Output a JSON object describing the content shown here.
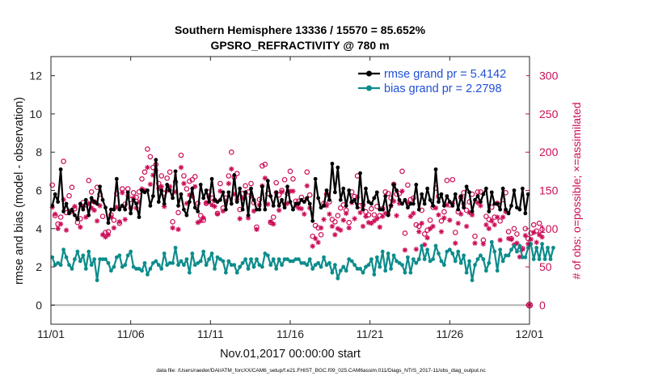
{
  "chart_data": {
    "type": "line",
    "title_line1": "Southern Hemisphere 13336 / 15570 = 85.652%",
    "title_line2": "GPSRO_REFRACTIVITY @ 780 m",
    "xlabel": "Nov.01,2017 00:00:00 start",
    "ylabel_left": "rmse and bias (model - observation)",
    "ylabel_right": "# of obs: o=possible; ×=assimilated",
    "x_tick_labels": [
      "11/01",
      "11/06",
      "11/11",
      "11/16",
      "11/21",
      "11/26",
      "12/01"
    ],
    "x_tick_days": [
      0,
      5,
      10,
      15,
      20,
      25,
      30
    ],
    "xlim_days": [
      0,
      30
    ],
    "ylim_left": [
      -1,
      13
    ],
    "yticks_left": [
      "0",
      "2",
      "4",
      "6",
      "8",
      "10",
      "12"
    ],
    "ylim_right": [
      -25,
      325
    ],
    "yticks_right": [
      "0",
      "50",
      "100",
      "150",
      "200",
      "250",
      "300"
    ],
    "legend_position": "top-right",
    "colors": {
      "rmse": "#000000",
      "bias": "#0d8c8c",
      "obs": "#cc0e58",
      "zero_line": "#b0b0b0"
    },
    "series": [
      {
        "name": "rmse grand pr = 5.4142",
        "values": [
          5.2,
          5.8,
          5.4,
          7.1,
          4.9,
          5.3,
          4.8,
          5.0,
          4.7,
          4.5,
          5.3,
          5.0,
          5.5,
          4.7,
          5.6,
          5.4,
          5.3,
          6.2,
          5.5,
          5.1,
          4.3,
          5.0,
          5.0,
          6.6,
          5.0,
          5.2,
          5.0,
          5.9,
          4.8,
          5.5,
          5.3,
          4.6,
          6.0,
          5.9,
          6.0,
          5.2,
          5.7,
          7.6,
          5.4,
          6.0,
          5.3,
          6.3,
          6.0,
          5.6,
          7.0,
          5.2,
          5.8,
          5.0,
          4.7,
          5.4,
          6.1,
          5.1,
          4.9,
          6.3,
          5.6,
          6.0,
          5.4,
          6.6,
          5.5,
          5.4,
          5.5,
          5.9,
          5.0,
          5.9,
          5.3,
          6.8,
          5.4,
          6.1,
          5.0,
          5.9,
          4.7,
          6.1,
          5.5,
          5.0,
          5.0,
          6.2,
          5.0,
          6.5,
          5.7,
          5.2,
          5.9,
          5.2,
          5.5,
          5.1,
          6.2,
          5.4,
          5.0,
          5.3,
          5.3,
          5.5,
          5.4,
          5.6,
          5.3,
          4.4,
          6.6,
          5.6,
          5.1,
          5.2,
          6.0,
          5.5,
          7.4,
          5.9,
          7.2,
          5.5,
          6.1,
          5.2,
          6.0,
          5.4,
          5.5,
          5.1,
          6.9,
          5.0,
          6.1,
          5.4,
          5.3,
          5.6,
          5.9,
          5.0,
          5.0,
          5.7,
          4.7,
          5.2,
          6.3,
          6.0,
          5.5,
          5.3,
          5.5,
          5.1,
          5.3,
          5.3,
          6.3,
          5.0,
          5.8,
          5.3,
          6.1,
          5.5,
          5.2,
          7.1,
          5.4,
          5.8,
          5.2,
          5.7,
          5.4,
          5.2,
          5.8,
          5.0,
          5.7,
          5.1,
          6.2,
          5.9,
          4.9,
          5.5,
          5.7,
          5.4,
          5.8,
          6.1,
          4.9,
          5.9,
          5.3,
          5.3,
          5.0,
          6.1,
          5.0,
          4.8,
          5.2,
          6.0,
          5.1,
          5.0,
          6.1,
          4.8,
          5.8
        ]
      },
      {
        "name": "bias grand pr = 2.2798",
        "values": [
          2.5,
          2.1,
          2.2,
          2.1,
          2.9,
          2.5,
          2.1,
          1.9,
          2.4,
          2.8,
          2.3,
          2.6,
          1.9,
          2.8,
          2.1,
          2.4,
          1.3,
          2.4,
          2.4,
          2.4,
          2.2,
          1.8,
          2.0,
          2.5,
          2.6,
          2.0,
          2.1,
          2.6,
          2.8,
          2.0,
          1.9,
          1.9,
          1.8,
          2.2,
          1.6,
          1.9,
          2.2,
          2.3,
          2.1,
          1.9,
          2.7,
          2.1,
          2.2,
          2.2,
          3.0,
          2.1,
          2.3,
          2.1,
          2.4,
          1.7,
          2.7,
          2.1,
          2.2,
          2.3,
          2.8,
          2.1,
          2.4,
          2.7,
          1.9,
          2.5,
          2.4,
          2.3,
          1.7,
          2.3,
          2.1,
          2.1,
          1.7,
          2.0,
          2.2,
          2.4,
          1.9,
          2.4,
          2.0,
          2.4,
          2.1,
          2.0,
          2.7,
          2.6,
          2.1,
          2.4,
          1.9,
          2.4,
          2.1,
          2.4,
          2.4,
          2.3,
          2.3,
          2.4,
          2.4,
          2.2,
          2.2,
          2.1,
          2.4,
          1.9,
          2.1,
          2.2,
          2.0,
          2.5,
          2.1,
          2.2,
          1.7,
          2.1,
          1.4,
          1.8,
          2.0,
          1.8,
          2.4,
          2.3,
          2.1,
          1.9,
          1.9,
          1.7,
          2.0,
          2.1,
          2.4,
          1.6,
          2.5,
          2.0,
          2.8,
          1.8,
          2.7,
          1.9,
          2.6,
          2.3,
          2.2,
          2.1,
          1.7,
          2.5,
          1.7,
          2.4,
          2.2,
          2.4,
          3.1,
          2.4,
          2.9,
          2.3,
          2.4,
          3.1,
          2.7,
          2.3,
          2.1,
          2.8,
          2.9,
          2.7,
          2.3,
          2.8,
          2.2,
          2.6,
          1.7,
          2.3,
          1.3,
          2.1,
          2.4,
          2.6,
          2.4,
          1.8,
          2.2,
          3.3,
          2.8,
          1.8,
          2.9,
          2.3,
          2.6,
          2.6,
          2.9,
          3.1,
          2.8,
          3.1,
          2.5,
          2.5,
          3.0,
          3.2,
          2.4,
          3.0,
          2.4,
          3.2,
          2.4,
          3.0,
          2.4,
          3.0
        ]
      },
      {
        "name": "obs possible (o)",
        "values": [
          157,
          117,
          106,
          115,
          188,
          121,
          143,
          154,
          126,
          108,
          113,
          134,
          131,
          163,
          148,
          135,
          154,
          145,
          116,
          95,
          96,
          118,
          111,
          146,
          107,
          152,
          132,
          152,
          138,
          147,
          141,
          148,
          165,
          174,
          204,
          194,
          180,
          184,
          159,
          169,
          146,
          166,
          174,
          109,
          161,
          121,
          196,
          169,
          152,
          162,
          164,
          168,
          133,
          117,
          111,
          133,
          148,
          140,
          137,
          120,
          159,
          127,
          140,
          169,
          200,
          167,
          172,
          125,
          146,
          156,
          148,
          159,
          134,
          102,
          138,
          182,
          184,
          146,
          108,
          115,
          160,
          144,
          150,
          164,
          146,
          175,
          165,
          136,
          136,
          141,
          137,
          174,
          144,
          90,
          104,
          101,
          92,
          133,
          145,
          135,
          112,
          109,
          117,
          127,
          131,
          124,
          108,
          148,
          142,
          169,
          130,
          131,
          122,
          118,
          126,
          118,
          129,
          117,
          126,
          148,
          146,
          140,
          158,
          145,
          146,
          175,
          94,
          157,
          138,
          140,
          105,
          103,
          124,
          93,
          98,
          111,
          128,
          153,
          142,
          110,
          122,
          163,
          131,
          164,
          95,
          122,
          141,
          147,
          124,
          135,
          145,
          90,
          148,
          148,
          85,
          116,
          112,
          128,
          115,
          133,
          110,
          138,
          147,
          96,
          87,
          100,
          93,
          73,
          74,
          100,
          87,
          94,
          105,
          97,
          107,
          99
        ]
      },
      {
        "name": "obs assimilated (×)",
        "values": [
          128,
          119,
          100,
          106,
          138,
          98,
          123,
          122,
          129,
          113,
          102,
          129,
          115,
          133,
          127,
          124,
          110,
          130,
          92,
          89,
          92,
          115,
          101,
          128,
          109,
          147,
          112,
          143,
          127,
          140,
          127,
          135,
          152,
          150,
          180,
          158,
          170,
          176,
          153,
          155,
          129,
          150,
          155,
          101,
          148,
          99,
          180,
          159,
          133,
          144,
          142,
          155,
          108,
          110,
          114,
          134,
          141,
          131,
          129,
          119,
          149,
          123,
          136,
          159,
          178,
          145,
          138,
          113,
          140,
          147,
          114,
          142,
          123,
          99,
          131,
          156,
          166,
          132,
          109,
          106,
          147,
          124,
          148,
          132,
          133,
          149,
          149,
          130,
          127,
          126,
          119,
          156,
          127,
          77,
          87,
          82,
          101,
          112,
          130,
          119,
          103,
          92,
          100,
          98,
          111,
          120,
          101,
          134,
          113,
          141,
          121,
          103,
          116,
          108,
          107,
          110,
          113,
          102,
          116,
          120,
          119,
          130,
          136,
          117,
          133,
          149,
          72,
          134,
          116,
          120,
          73,
          96,
          107,
          79,
          88,
          100,
          103,
          127,
          118,
          96,
          114,
          131,
          111,
          133,
          81,
          107,
          119,
          132,
          103,
          121,
          118,
          81,
          134,
          130,
          80,
          105,
          100,
          110,
          105,
          115,
          85,
          115,
          122,
          87,
          86,
          79,
          81,
          63,
          73,
          91,
          80,
          86,
          95,
          82,
          92,
          89
        ]
      }
    ],
    "final_point": {
      "obs_possible": 0,
      "obs_assimilated": 0
    },
    "footnote": "data file: /Users/raeder/DAI/ATM_forcXX/CAM6_setup/f.e21.FHIST_BGC.f09_025.CAM6assim.011/Diags_NTrS_2017-11/obs_diag_output.nc"
  }
}
